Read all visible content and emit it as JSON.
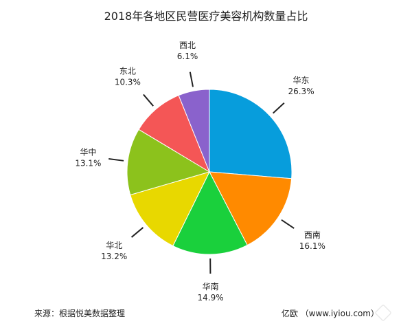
{
  "title": "2018年各地区民营医疗美容机构数量占比",
  "footer": {
    "source": "来源：根据悦美数据整理",
    "credit": "亿欧 （www.iyiou.com）"
  },
  "watermark": {
    "text": "亿欧"
  },
  "chart_data": {
    "type": "pie",
    "title": "2018年各地区民营医疗美容机构数量占比",
    "start_angle_deg": 0,
    "direction": "clockwise",
    "slices": [
      {
        "label": "华东",
        "value": 26.3,
        "value_label": "26.3%",
        "color": "#079ddc"
      },
      {
        "label": "西南",
        "value": 16.1,
        "value_label": "16.1%",
        "color": "#ff8a00"
      },
      {
        "label": "华南",
        "value": 14.9,
        "value_label": "14.9%",
        "color": "#1ad03c"
      },
      {
        "label": "华北",
        "value": 13.2,
        "value_label": "13.2%",
        "color": "#e8d800"
      },
      {
        "label": "华中",
        "value": 13.1,
        "value_label": "13.1%",
        "color": "#8cc21c"
      },
      {
        "label": "东北",
        "value": 10.3,
        "value_label": "10.3%",
        "color": "#f45656"
      },
      {
        "label": "西北",
        "value": 6.1,
        "value_label": "6.1%",
        "color": "#8a62cc"
      }
    ]
  }
}
